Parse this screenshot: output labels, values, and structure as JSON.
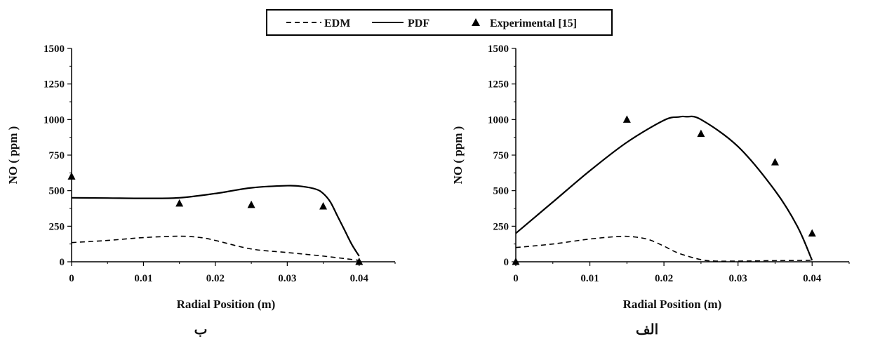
{
  "legend": {
    "items": [
      {
        "label": "EDM",
        "style": "dashed"
      },
      {
        "label": "PDF",
        "style": "solid"
      },
      {
        "label": "Experimental [15]",
        "style": "triangle"
      }
    ]
  },
  "colors": {
    "line": "#000000",
    "background": "#ffffff"
  },
  "chart_data": [
    {
      "type": "line",
      "panel_label": "ب",
      "xlabel": "Radial Position (m)",
      "ylabel": "NO ( ppm )",
      "xlim": [
        0,
        0.045
      ],
      "ylim": [
        0,
        1500
      ],
      "xticks": [
        0,
        0.01,
        0.02,
        0.03,
        0.04
      ],
      "xtick_labels": [
        "0",
        "0.01",
        "0.02",
        "0.03",
        "0.04"
      ],
      "yticks": [
        0,
        250,
        500,
        750,
        1000,
        1250,
        1500
      ],
      "ytick_labels": [
        "0",
        "250",
        "500",
        "750",
        "1000",
        "1250",
        "1500"
      ],
      "grid": false,
      "series": [
        {
          "name": "EDM",
          "style": "dashed",
          "x": [
            0,
            0.005,
            0.01,
            0.015,
            0.018,
            0.02,
            0.025,
            0.03,
            0.035,
            0.04
          ],
          "y": [
            135,
            150,
            170,
            180,
            170,
            150,
            90,
            65,
            40,
            10
          ]
        },
        {
          "name": "PDF",
          "style": "solid",
          "x": [
            0,
            0.005,
            0.01,
            0.015,
            0.02,
            0.025,
            0.03,
            0.032,
            0.034,
            0.035,
            0.036,
            0.037,
            0.038,
            0.039,
            0.04
          ],
          "y": [
            450,
            448,
            446,
            450,
            480,
            520,
            535,
            530,
            510,
            480,
            420,
            320,
            220,
            120,
            40
          ]
        },
        {
          "name": "Experimental [15]",
          "style": "triangle",
          "x": [
            0,
            0.015,
            0.025,
            0.035,
            0.04
          ],
          "y": [
            600,
            410,
            400,
            390,
            0
          ]
        }
      ]
    },
    {
      "type": "line",
      "panel_label": "الف",
      "xlabel": "Radial Position (m)",
      "ylabel": "NO ( ppm )",
      "xlim": [
        0,
        0.045
      ],
      "ylim": [
        0,
        1500
      ],
      "xticks": [
        0,
        0.01,
        0.02,
        0.03,
        0.04
      ],
      "xtick_labels": [
        "0",
        "0.01",
        "0.02",
        "0.03",
        "0.04"
      ],
      "yticks": [
        0,
        250,
        500,
        750,
        1000,
        1250,
        1500
      ],
      "ytick_labels": [
        "0",
        "250",
        "500",
        "750",
        "1000",
        "1250",
        "1500"
      ],
      "grid": false,
      "series": [
        {
          "name": "EDM",
          "style": "dashed",
          "x": [
            0,
            0.005,
            0.01,
            0.014,
            0.016,
            0.018,
            0.02,
            0.022,
            0.025,
            0.027,
            0.03,
            0.035,
            0.04
          ],
          "y": [
            100,
            125,
            160,
            178,
            175,
            155,
            110,
            60,
            15,
            5,
            5,
            8,
            10
          ]
        },
        {
          "name": "PDF",
          "style": "solid",
          "x": [
            0,
            0.005,
            0.01,
            0.015,
            0.02,
            0.022,
            0.023,
            0.025,
            0.03,
            0.035,
            0.038,
            0.04
          ],
          "y": [
            200,
            420,
            640,
            840,
            995,
            1018,
            1020,
            1000,
            810,
            500,
            250,
            10
          ]
        },
        {
          "name": "Experimental [15]",
          "style": "triangle",
          "x": [
            0,
            0.015,
            0.025,
            0.035,
            0.04
          ],
          "y": [
            0,
            1000,
            900,
            700,
            200
          ]
        }
      ]
    }
  ]
}
